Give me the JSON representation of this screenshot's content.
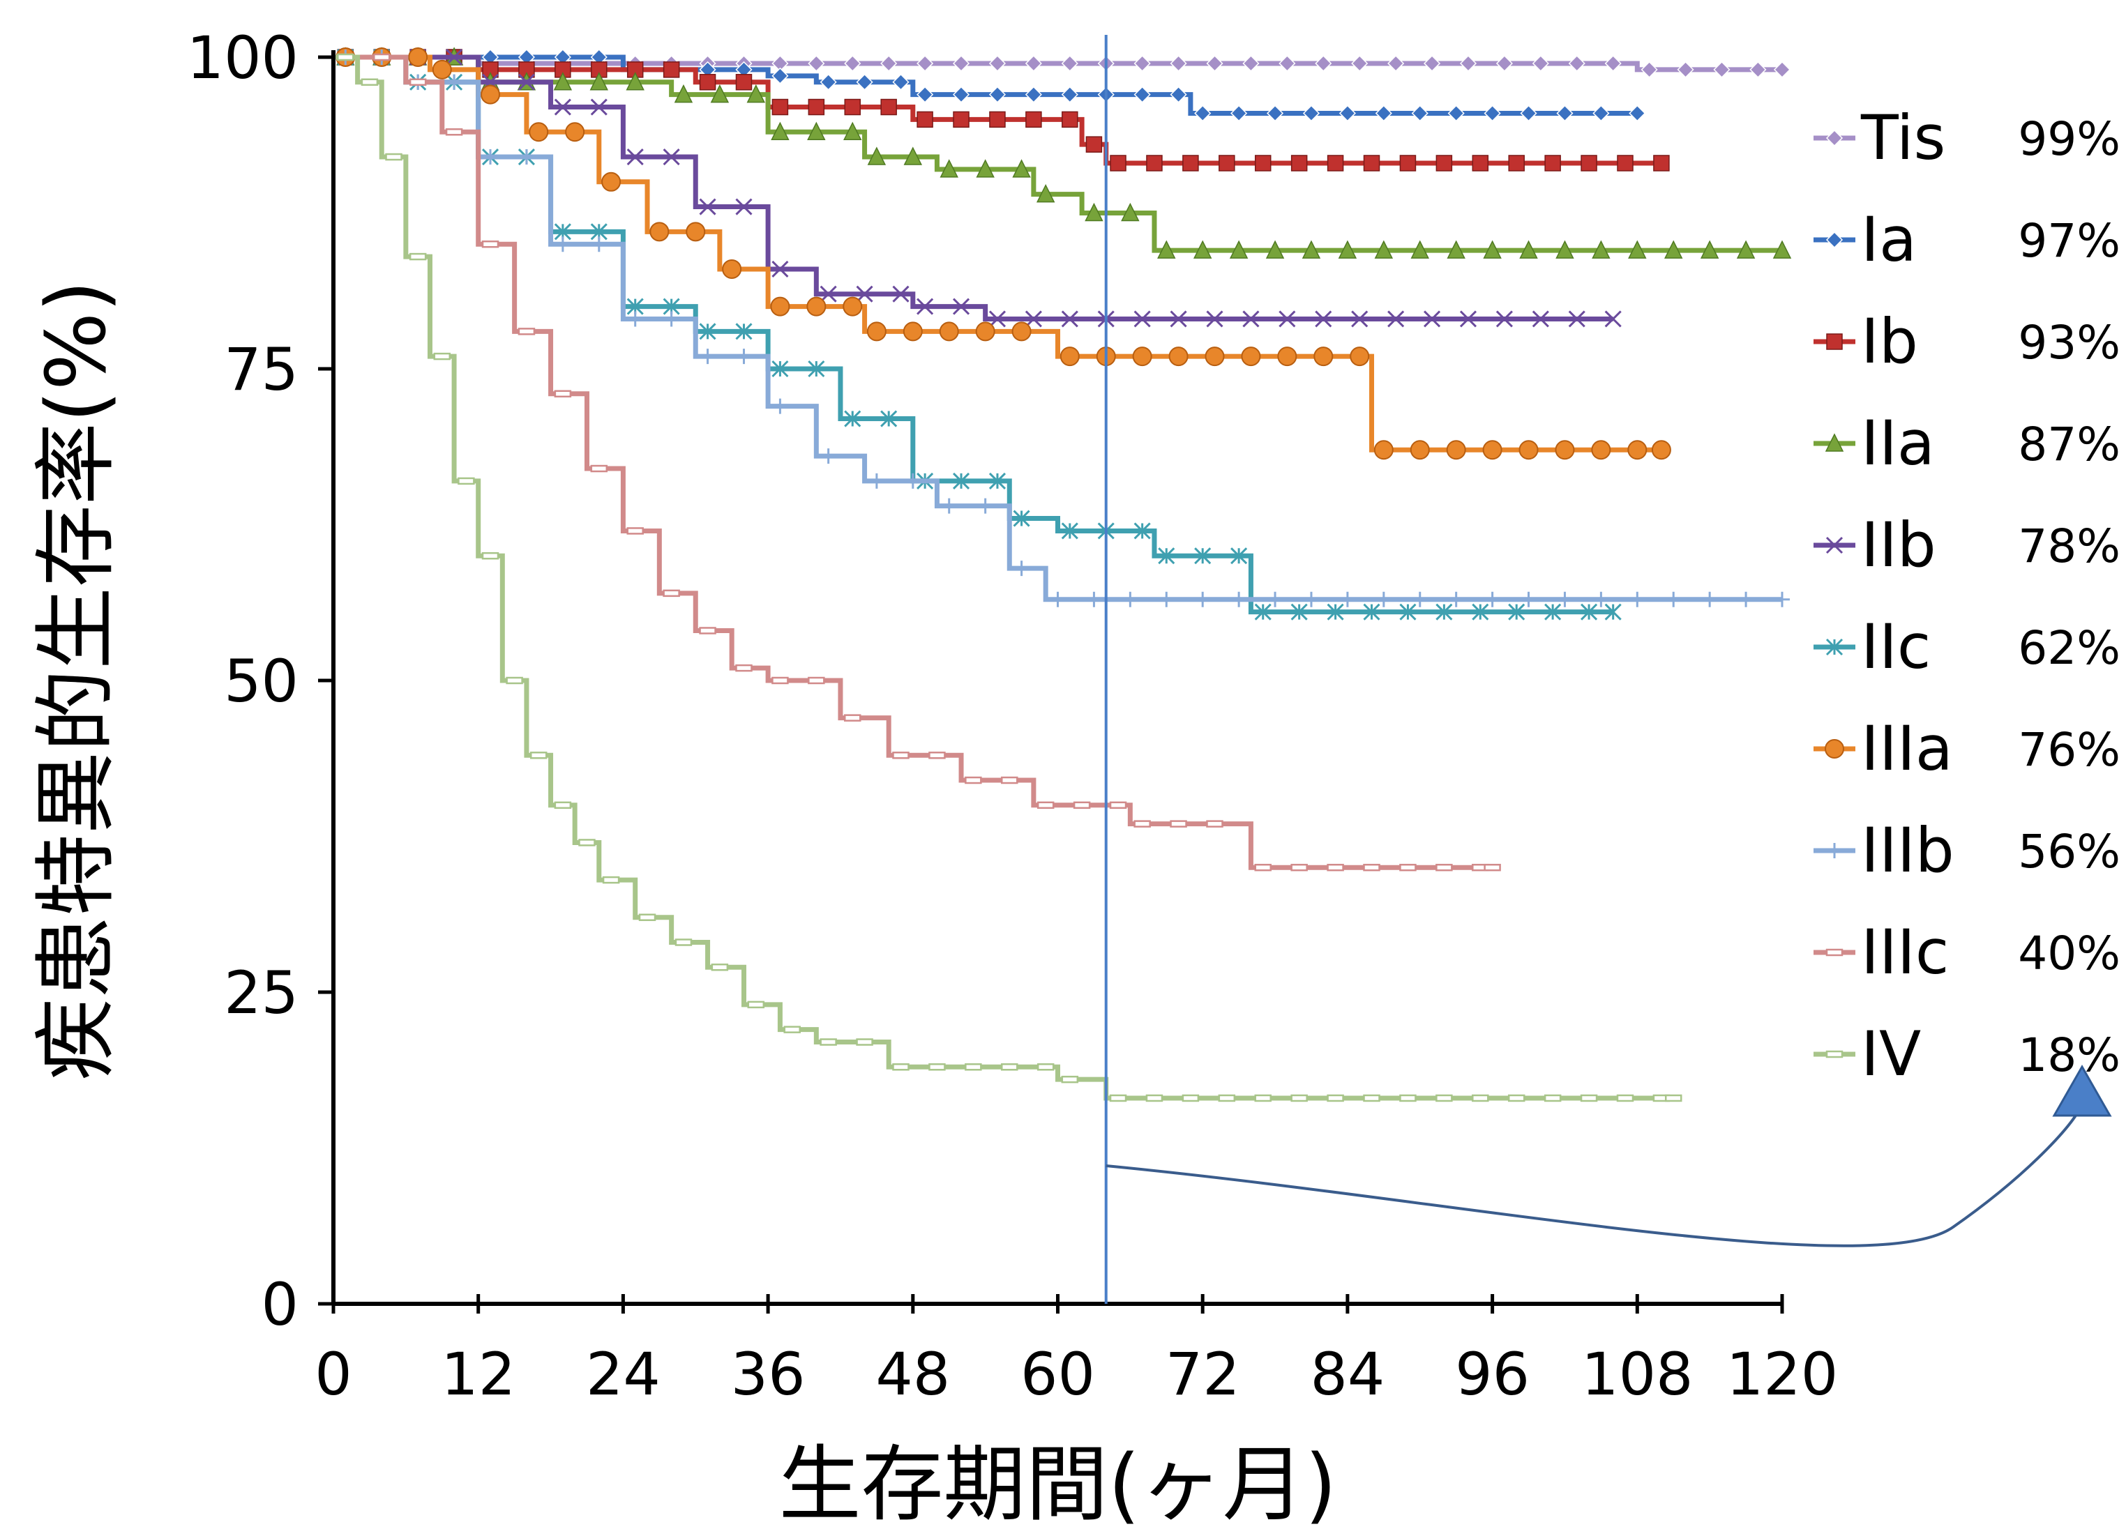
{
  "chart_data": {
    "type": "line",
    "step": true,
    "title": "",
    "xlabel": "生存期間(ヶ月)",
    "ylabel": "疾患特異的生存率(%)",
    "xlim": [
      0,
      120
    ],
    "ylim": [
      0,
      100
    ],
    "x_ticks": [
      "0",
      "12",
      "24",
      "36",
      "48",
      "60",
      "72",
      "84",
      "96",
      "108",
      "120"
    ],
    "y_ticks": [
      "0",
      "25",
      "50",
      "75",
      "100"
    ],
    "grid": false,
    "legend_position": "right",
    "reference_line_x": 64,
    "series": [
      {
        "name": "Tis",
        "label": "99%",
        "color": "#a58fc7",
        "marker": "diamond",
        "points": [
          [
            0,
            100
          ],
          [
            12,
            99.5
          ],
          [
            108,
            99
          ],
          [
            120,
            99
          ]
        ]
      },
      {
        "name": "Ia",
        "label": "97%",
        "color": "#3a71c1",
        "marker": "diamond",
        "points": [
          [
            0,
            100
          ],
          [
            24,
            99
          ],
          [
            36,
            98.5
          ],
          [
            40,
            98
          ],
          [
            48,
            97
          ],
          [
            60,
            97
          ],
          [
            71,
            95.5
          ],
          [
            108,
            95.5
          ]
        ]
      },
      {
        "name": "Ib",
        "label": "93%",
        "color": "#c0312e",
        "marker": "square",
        "points": [
          [
            0,
            100
          ],
          [
            12,
            99
          ],
          [
            30,
            98
          ],
          [
            36,
            96
          ],
          [
            48,
            95
          ],
          [
            62,
            93
          ],
          [
            64,
            91.5
          ],
          [
            110,
            91.5
          ]
        ]
      },
      {
        "name": "IIa",
        "label": "87%",
        "color": "#77a33a",
        "marker": "triangle",
        "points": [
          [
            0,
            100
          ],
          [
            12,
            98
          ],
          [
            28,
            97
          ],
          [
            36,
            94
          ],
          [
            44,
            92
          ],
          [
            50,
            91
          ],
          [
            58,
            89
          ],
          [
            62,
            87.5
          ],
          [
            68,
            84.5
          ],
          [
            120,
            84.5
          ]
        ]
      },
      {
        "name": "IIb",
        "label": "78%",
        "color": "#6a4a9c",
        "marker": "x",
        "points": [
          [
            0,
            100
          ],
          [
            12,
            98
          ],
          [
            18,
            96
          ],
          [
            24,
            92
          ],
          [
            30,
            88
          ],
          [
            36,
            83
          ],
          [
            40,
            81
          ],
          [
            48,
            80
          ],
          [
            54,
            79
          ],
          [
            106,
            79
          ]
        ]
      },
      {
        "name": "IIc",
        "label": "62%",
        "color": "#3fa0b0",
        "marker": "asterisk",
        "points": [
          [
            0,
            100
          ],
          [
            6,
            98
          ],
          [
            12,
            92
          ],
          [
            18,
            86
          ],
          [
            24,
            80
          ],
          [
            30,
            78
          ],
          [
            36,
            75
          ],
          [
            42,
            71
          ],
          [
            48,
            66
          ],
          [
            56,
            63
          ],
          [
            60,
            62
          ],
          [
            68,
            60
          ],
          [
            76,
            55.5
          ],
          [
            106,
            55.5
          ]
        ]
      },
      {
        "name": "IIIa",
        "label": "76%",
        "color": "#e8862a",
        "marker": "circle",
        "points": [
          [
            0,
            100
          ],
          [
            8,
            99
          ],
          [
            12,
            97
          ],
          [
            16,
            94
          ],
          [
            22,
            90
          ],
          [
            26,
            86
          ],
          [
            32,
            83
          ],
          [
            36,
            80
          ],
          [
            44,
            78
          ],
          [
            60,
            76
          ],
          [
            86,
            76
          ],
          [
            86,
            68.5
          ],
          [
            110,
            68.5
          ]
        ]
      },
      {
        "name": "IIIb",
        "label": "56%",
        "color": "#88aad8",
        "marker": "plus",
        "points": [
          [
            0,
            100
          ],
          [
            6,
            98
          ],
          [
            12,
            92
          ],
          [
            18,
            85
          ],
          [
            24,
            79
          ],
          [
            30,
            76
          ],
          [
            36,
            72
          ],
          [
            40,
            68
          ],
          [
            44,
            66
          ],
          [
            50,
            64
          ],
          [
            56,
            59
          ],
          [
            59,
            56.5
          ],
          [
            120,
            56.5
          ]
        ]
      },
      {
        "name": "IIIc",
        "label": "40%",
        "color": "#d18a8a",
        "marker": "dash",
        "points": [
          [
            0,
            100
          ],
          [
            6,
            98
          ],
          [
            9,
            94
          ],
          [
            12,
            85
          ],
          [
            15,
            78
          ],
          [
            18,
            73
          ],
          [
            21,
            67
          ],
          [
            24,
            62
          ],
          [
            27,
            57
          ],
          [
            30,
            54
          ],
          [
            33,
            51
          ],
          [
            36,
            50
          ],
          [
            42,
            47
          ],
          [
            46,
            44
          ],
          [
            52,
            42
          ],
          [
            58,
            40
          ],
          [
            66,
            38.5
          ],
          [
            76,
            35
          ],
          [
            96,
            35
          ]
        ]
      },
      {
        "name": "IV",
        "label": "18%",
        "color": "#a8c58a",
        "marker": "dash",
        "points": [
          [
            0,
            100
          ],
          [
            2,
            98
          ],
          [
            4,
            92
          ],
          [
            6,
            84
          ],
          [
            8,
            76
          ],
          [
            10,
            66
          ],
          [
            12,
            60
          ],
          [
            14,
            50
          ],
          [
            16,
            44
          ],
          [
            18,
            40
          ],
          [
            20,
            37
          ],
          [
            22,
            34
          ],
          [
            25,
            31
          ],
          [
            28,
            29
          ],
          [
            31,
            27
          ],
          [
            34,
            24
          ],
          [
            37,
            22
          ],
          [
            40,
            21
          ],
          [
            46,
            19
          ],
          [
            60,
            18
          ],
          [
            64,
            16.5
          ],
          [
            111,
            16.5
          ]
        ]
      }
    ]
  }
}
